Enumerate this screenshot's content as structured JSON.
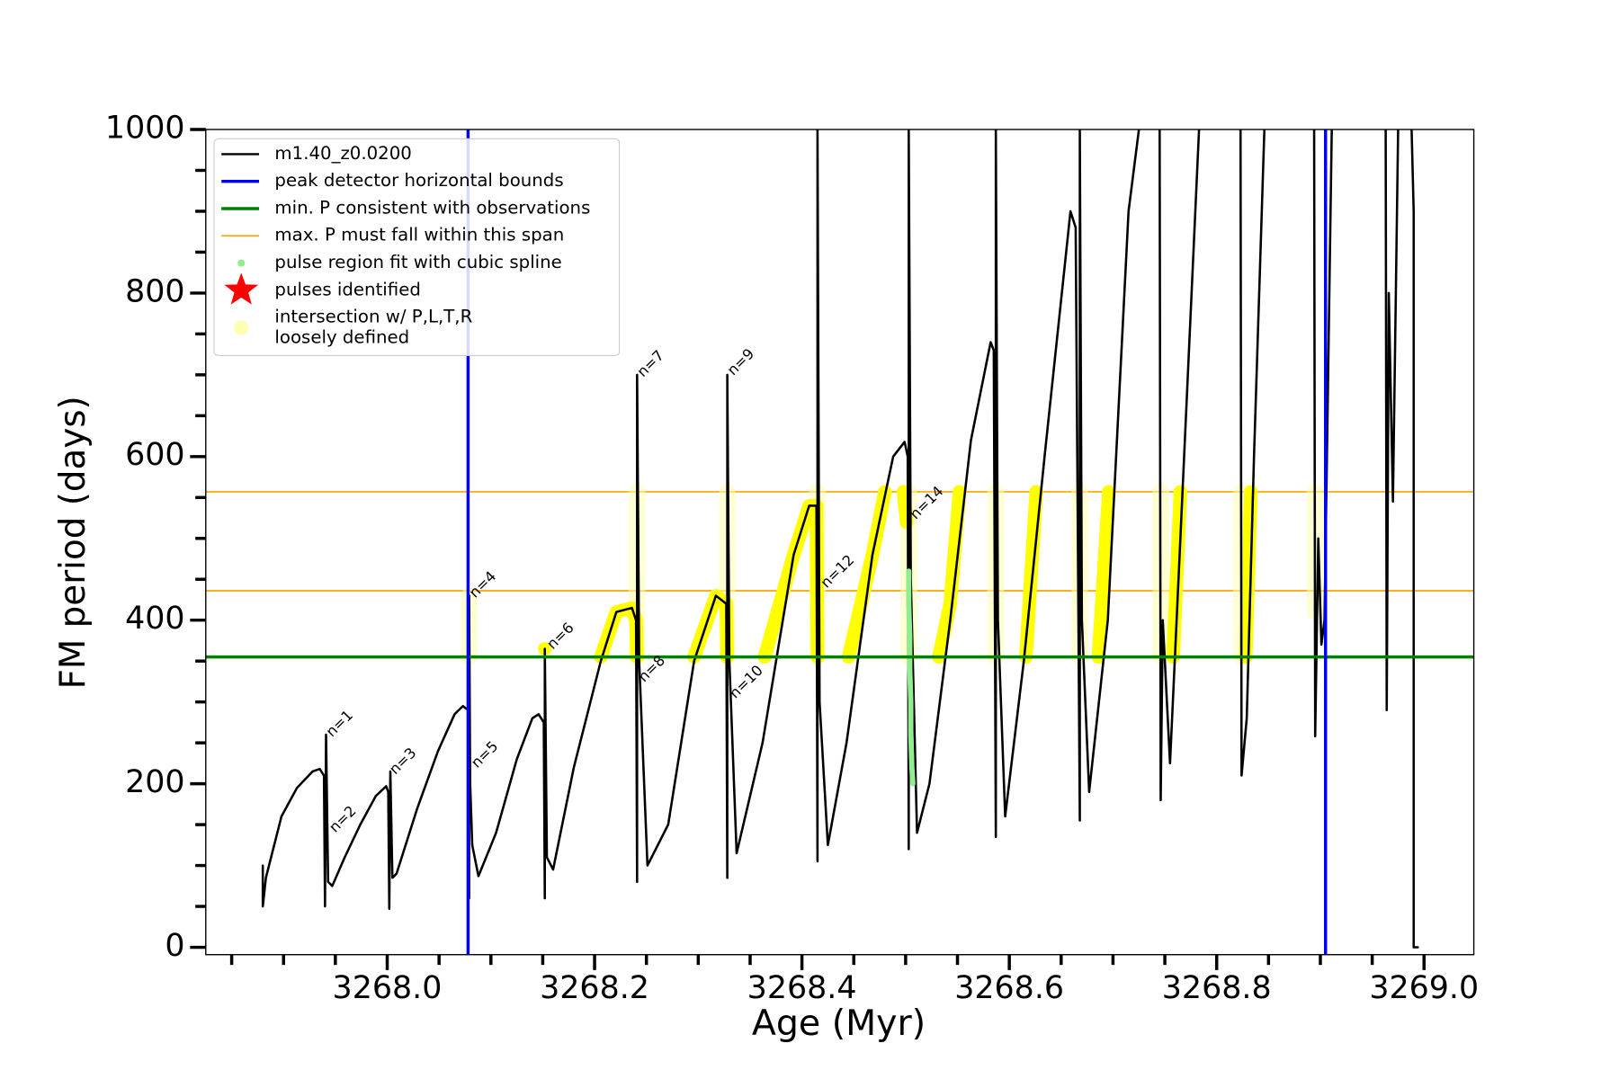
{
  "chart_data": {
    "type": "line",
    "xlabel": "Age (Myr)",
    "ylabel": "FM period (days)",
    "xlim": [
      3267.825,
      3269.048
    ],
    "ylim": [
      -9,
      1000
    ],
    "xticks": [
      {
        "value": 3268.0,
        "label": "3268.0"
      },
      3268.2,
      3268.4,
      3268.6,
      3268.8,
      {
        "value": 3269.0,
        "label": "3269.0"
      }
    ],
    "xticks_minor": [
      3267.85,
      3267.9,
      3267.95,
      3268.05,
      3268.1,
      3268.15,
      3268.25,
      3268.3,
      3268.35,
      3268.45,
      3268.5,
      3268.55,
      3268.65,
      3268.7,
      3268.75,
      3268.85,
      3268.9,
      3268.95
    ],
    "yticks": [
      0,
      200,
      400,
      600,
      800,
      1000
    ],
    "yticks_minor": [
      50,
      100,
      150,
      250,
      300,
      350,
      450,
      500,
      550,
      650,
      700,
      750,
      850,
      900,
      950
    ],
    "legend": "upper left",
    "series": [
      {
        "name": "m1.40_z0.0200",
        "color": "#000000",
        "x": [
          3267.88,
          3267.88,
          3267.883,
          3267.898,
          3267.913,
          3267.928,
          3267.935,
          3267.939,
          3267.94,
          3267.941,
          3267.943,
          3267.947,
          3267.959,
          3267.974,
          3267.989,
          3267.999,
          3268.001,
          3268.002,
          3268.003,
          3268.005,
          3268.009,
          3268.029,
          3268.049,
          3268.065,
          3268.073,
          3268.078,
          3268.079,
          3268.079,
          3268.08,
          3268.082,
          3268.088,
          3268.105,
          3268.125,
          3268.14,
          3268.146,
          3268.151,
          3268.152,
          3268.152,
          3268.154,
          3268.16,
          3268.18,
          3268.206,
          3268.221,
          3268.236,
          3268.24,
          3268.241,
          3268.241,
          3268.243,
          3268.251,
          3268.271,
          3268.296,
          3268.317,
          3268.327,
          3268.328,
          3268.328,
          3268.33,
          3268.337,
          3268.362,
          3268.392,
          3268.407,
          3268.414,
          3268.415,
          3268.415,
          3268.417,
          3268.425,
          3268.443,
          3268.468,
          3268.488,
          3268.499,
          3268.502,
          3268.503,
          3268.503,
          3268.505,
          3268.511,
          3268.523,
          3268.543,
          3268.563,
          3268.582,
          3268.585,
          3268.587,
          3268.587,
          3268.589,
          3268.596,
          3268.614,
          3268.634,
          3268.659,
          3268.664,
          3268.668,
          3268.668,
          3268.67,
          3268.677,
          3268.695,
          3268.715,
          3268.725,
          3268.735,
          3268.745,
          3268.746,
          3268.748,
          3268.755,
          3268.765,
          3268.783,
          3268.8,
          3268.823,
          3268.824,
          3268.829,
          3268.836,
          3268.846,
          3268.87,
          3268.894,
          3268.895,
          3268.898,
          3268.901,
          3268.904,
          3268.911,
          3268.94,
          3268.963,
          3268.964,
          3268.966,
          3268.97,
          3268.975,
          3268.98,
          3268.988,
          3268.99,
          3268.99,
          3268.994
        ],
        "values": [
          100,
          50,
          85,
          160,
          195,
          215,
          218,
          210,
          50,
          260,
          80,
          75,
          110,
          150,
          185,
          197,
          190,
          47,
          215,
          85,
          90,
          170,
          240,
          285,
          295,
          290,
          60,
          430,
          200,
          125,
          87,
          140,
          230,
          280,
          285,
          275,
          60,
          365,
          110,
          95,
          220,
          350,
          410,
          415,
          400,
          80,
          700,
          350,
          100,
          150,
          350,
          430,
          420,
          85,
          700,
          350,
          115,
          250,
          480,
          540,
          540,
          105,
          1000,
          300,
          125,
          250,
          480,
          600,
          618,
          600,
          120,
          1000,
          450,
          140,
          200,
          400,
          620,
          740,
          730,
          135,
          1000,
          400,
          160,
          350,
          600,
          900,
          880,
          155,
          1000,
          400,
          190,
          400,
          900,
          1000,
          null,
          1000,
          180,
          400,
          225,
          500,
          1000,
          null,
          1000,
          210,
          280,
          600,
          1000,
          null,
          1000,
          258,
          500,
          370,
          400,
          1000,
          null,
          1000,
          290,
          800,
          545,
          1000,
          null,
          1000,
          900,
          0,
          0
        ]
      },
      {
        "color": "#ffff00",
        "x": [
          3268.152,
          3268.16,
          3268.206,
          3268.221,
          3268.236,
          3268.24,
          3268.241,
          3268.25,
          3268.296,
          3268.317,
          3268.327,
          3268.328,
          3268.34,
          3268.364,
          3268.392,
          3268.407,
          3268.414,
          3268.415,
          3268.43,
          3268.445,
          3268.468,
          3268.48,
          3268.49,
          3268.498,
          3268.501,
          3268.51,
          3268.532,
          3268.543,
          3268.552,
          3268.56,
          3268.616,
          3268.626,
          3268.64,
          3268.686,
          3268.696,
          3268.71,
          3268.758,
          3268.765,
          3268.79,
          3268.828,
          3268.833
        ],
        "values": [
          365,
          null,
          355,
          410,
          415,
          400,
          355,
          null,
          355,
          430,
          420,
          355,
          null,
          355,
          480,
          540,
          540,
          355,
          null,
          355,
          480,
          557,
          null,
          557,
          520,
          null,
          355,
          420,
          557,
          null,
          355,
          557,
          null,
          355,
          557,
          null,
          355,
          557,
          null,
          355,
          557
        ]
      },
      {
        "name": "pulse region fit with cubic spline",
        "color": "#90ee90",
        "x": [
          3268.503,
          3268.503,
          3268.504,
          3268.504,
          3268.505,
          3268.505,
          3268.506,
          3268.507
        ],
        "values": [
          460,
          420,
          380,
          340,
          300,
          260,
          220,
          200
        ]
      },
      {
        "name": "pulses identified",
        "color": "#ff0000",
        "x": [],
        "values": []
      },
      {
        "name": [
          "intersection w/ P,L,T,R",
          "loosely defined"
        ],
        "color": "#ffffb0",
        "x": [
          3268.079,
          3268.079,
          3268.1,
          3268.241,
          3268.241,
          3268.26,
          3268.328,
          3268.328,
          3268.35,
          3268.415,
          3268.415,
          3268.44,
          3268.503,
          3268.503,
          3268.52,
          3268.587,
          3268.587,
          3268.6,
          3268.668,
          3268.668,
          3268.68,
          3268.746,
          3268.746,
          3268.76,
          3268.824,
          3268.824,
          3268.85,
          3268.895,
          3268.895
        ],
        "values": [
          355,
          430,
          null,
          355,
          557,
          null,
          355,
          557,
          null,
          355,
          557,
          null,
          355,
          557,
          null,
          355,
          557,
          null,
          355,
          557,
          null,
          355,
          557,
          null,
          355,
          557,
          null,
          410,
          557
        ]
      }
    ],
    "bounds": {
      "name": "peak detector horizontal bounds",
      "color": "#0000ff",
      "x": [
        3268.078,
        3268.905
      ]
    },
    "min_p": {
      "name": "min. P consistent with observations",
      "color": "#008000",
      "y": 355
    },
    "max_p": {
      "name": "max. P must fall within this span",
      "color": "#ffa500",
      "y": [
        436,
        557
      ]
    },
    "annotations": [
      {
        "text": "n=1",
        "x": 3267.944,
        "y": 260
      },
      {
        "text": "n=2",
        "x": 3267.947,
        "y": 143
      },
      {
        "text": "n=3",
        "x": 3268.005,
        "y": 214
      },
      {
        "text": "n=4",
        "x": 3268.082,
        "y": 430
      },
      {
        "text": "n=5",
        "x": 3268.084,
        "y": 222
      },
      {
        "text": "n=6",
        "x": 3268.157,
        "y": 367
      },
      {
        "text": "n=7",
        "x": 3268.244,
        "y": 700
      },
      {
        "text": "n=8",
        "x": 3268.245,
        "y": 327
      },
      {
        "text": "n=9",
        "x": 3268.331,
        "y": 702
      },
      {
        "text": "n=10",
        "x": 3268.333,
        "y": 307
      },
      {
        "text": "n=12",
        "x": 3268.421,
        "y": 442
      },
      {
        "text": "n=14",
        "x": 3268.507,
        "y": 526
      }
    ]
  }
}
